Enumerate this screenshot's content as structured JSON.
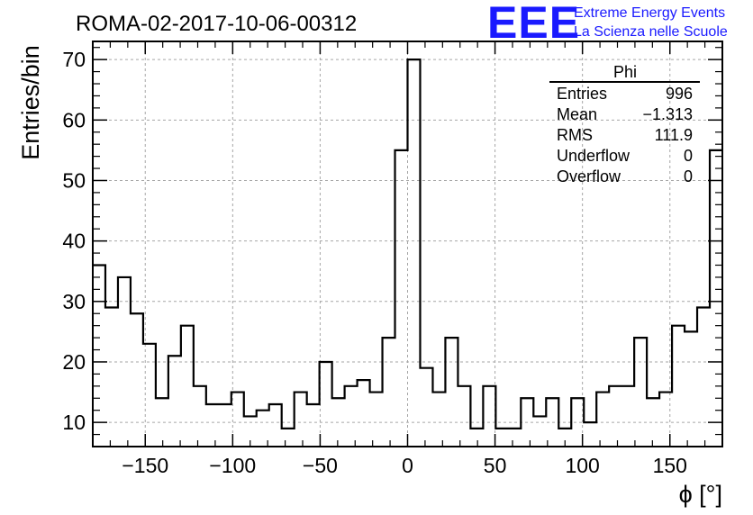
{
  "header": {
    "run_title": "ROMA-02-2017-10-06-00312",
    "logo_text": "EEE",
    "logo_line1": "Extreme Energy Events",
    "logo_line2": "La Scienza nelle Scuole"
  },
  "stats_box": {
    "title": "Phi",
    "rows": [
      {
        "label": "Entries",
        "value": "996"
      },
      {
        "label": "Mean",
        "value": "−1.313"
      },
      {
        "label": "RMS",
        "value": "111.9"
      },
      {
        "label": "Underflow",
        "value": "0"
      },
      {
        "label": "Overflow",
        "value": "0"
      }
    ]
  },
  "colors": {
    "logo": "#1a1aff",
    "histogram": "#000000",
    "grid": "#a6a6a6"
  },
  "chart_data": {
    "type": "bar",
    "histogram": true,
    "title": "ROMA-02-2017-10-06-00312",
    "xlabel": "ϕ [°]",
    "ylabel": "Entries/bin",
    "xlim": [
      -180,
      180
    ],
    "ylim": [
      6,
      73
    ],
    "bin_width": 7.2,
    "grid": true,
    "x_ticks": [
      -150,
      -100,
      -50,
      0,
      50,
      100,
      150
    ],
    "x_tick_labels": [
      "−150",
      "−100",
      "−50",
      "0",
      "50",
      "100",
      "150"
    ],
    "y_ticks": [
      10,
      20,
      30,
      40,
      50,
      60,
      70
    ],
    "y_tick_labels": [
      "10",
      "20",
      "30",
      "40",
      "50",
      "60",
      "70"
    ],
    "series": [
      {
        "values": [
          36,
          29,
          34,
          28,
          23,
          14,
          21,
          26,
          16,
          13,
          13,
          15,
          11,
          12,
          13,
          9,
          15,
          13,
          20,
          14,
          16,
          17,
          15,
          24,
          55,
          70,
          19,
          15,
          24,
          16,
          9,
          16,
          9,
          9,
          14,
          11,
          14,
          9,
          14,
          10,
          15,
          16,
          16,
          24,
          14,
          15,
          26,
          25,
          29,
          55
        ]
      }
    ]
  }
}
